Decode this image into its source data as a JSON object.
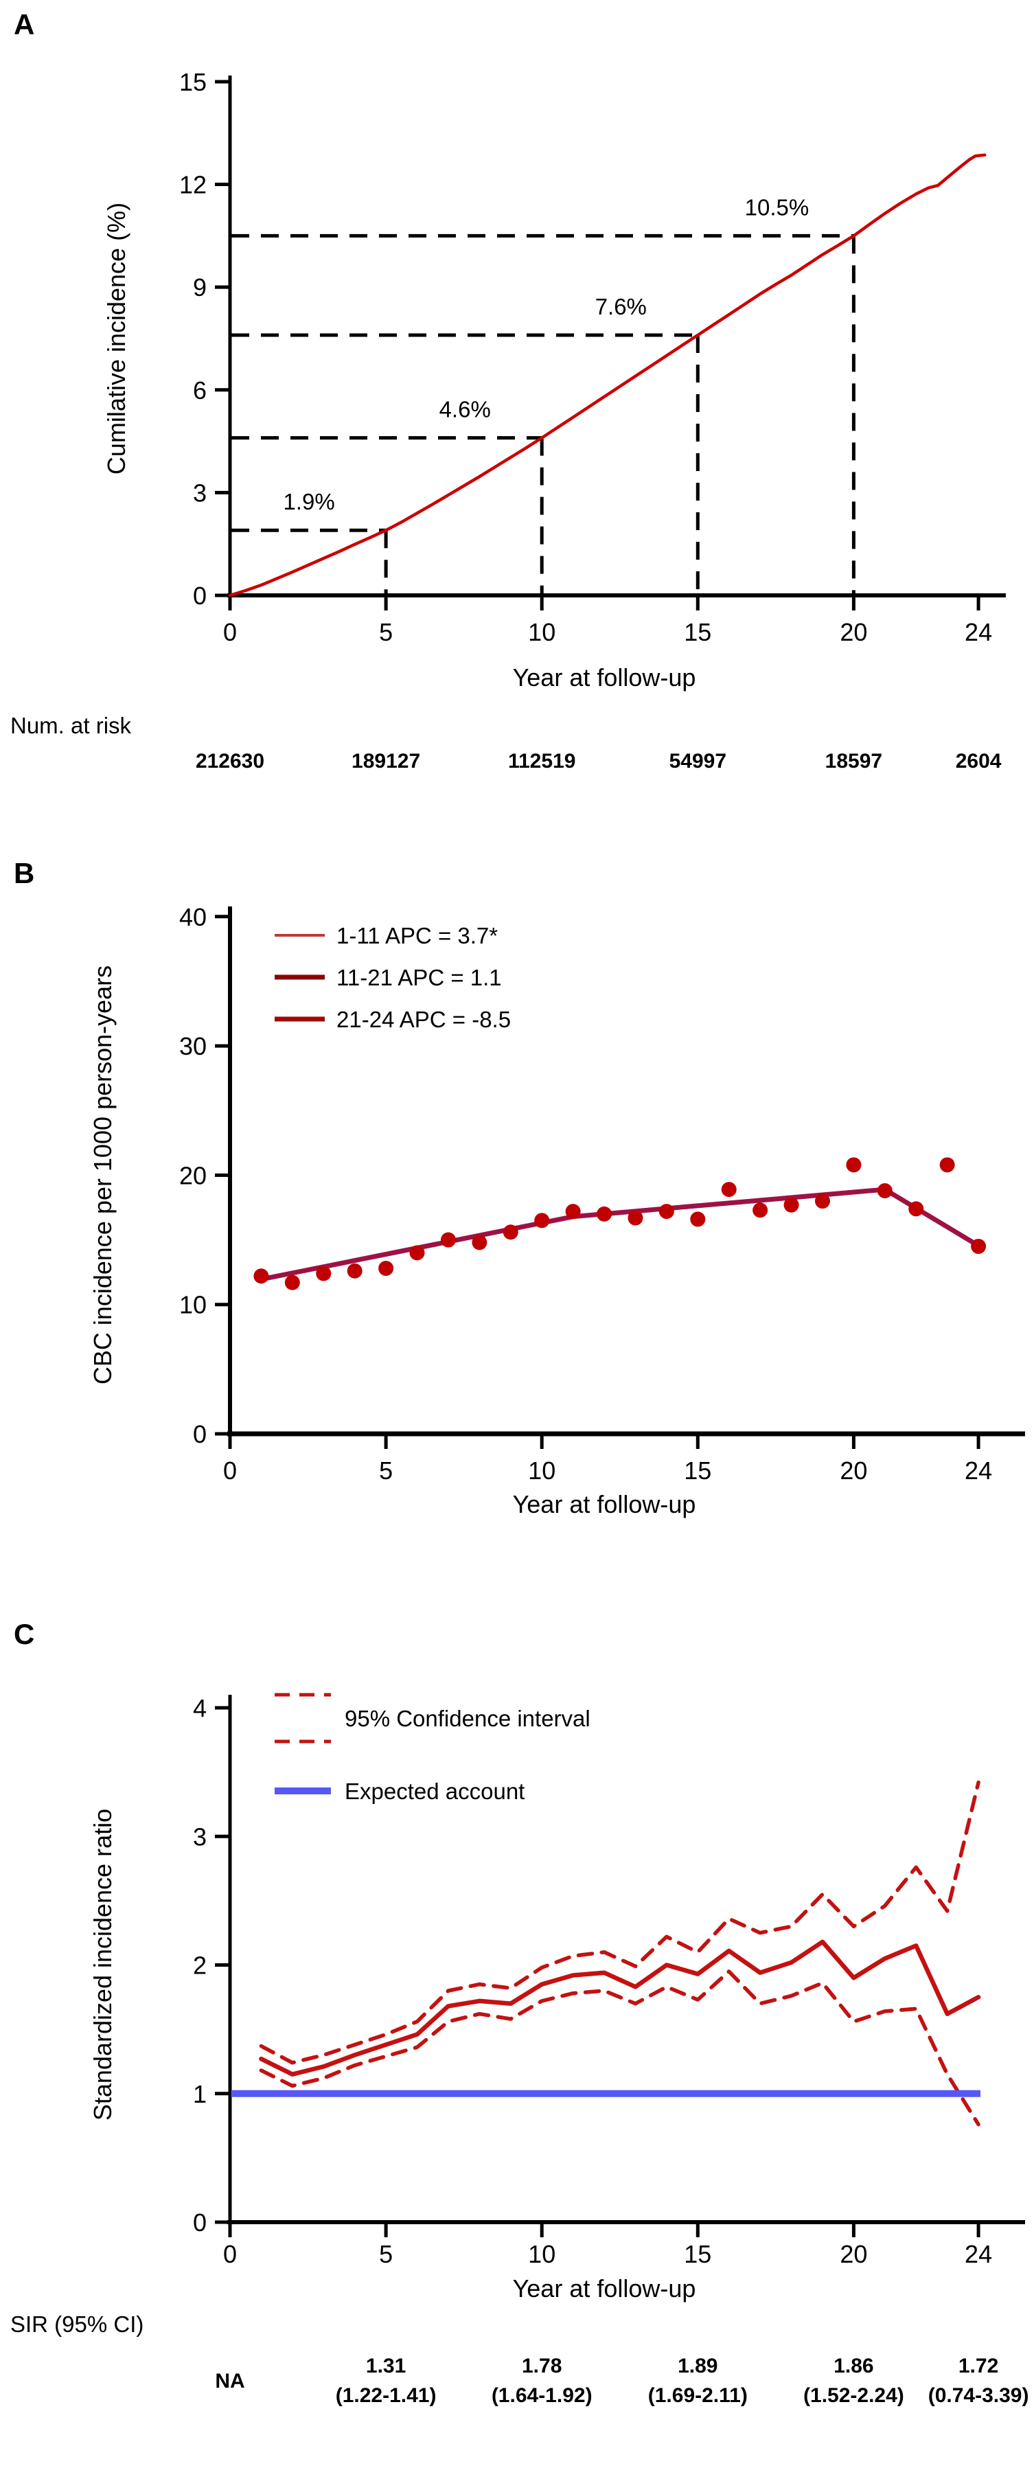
{
  "colors": {
    "axis": "#000000",
    "guide_dash": "#000000",
    "curve_red": "#cc0000",
    "b_dot": "#c00000",
    "b_line": "#9e1145",
    "b_seg1": "#bc3a3a",
    "b_seg2": "#8b0505",
    "b_seg3": "#a00808",
    "sir_red": "#c41111",
    "expected_blue": "#5757f7"
  },
  "panel_a": {
    "label": "A",
    "y_title": "Cumilative incidence (%)",
    "x_title": "Year at follow-up",
    "risk_label": "Num. at risk"
  },
  "panel_b": {
    "label": "B",
    "y_title": "CBC incidence per 1000 person-years",
    "x_title": "Year at follow-up"
  },
  "panel_c": {
    "label": "C",
    "y_title": "Standardized incidence ratio",
    "x_title": "Year at follow-up",
    "sir_label": "SIR (95% CI)"
  },
  "chart_data": [
    {
      "type": "line",
      "panel": "A",
      "xlabel": "Year at follow-up",
      "ylabel": "Cumilative incidence (%)",
      "xlim": [
        0,
        24.3
      ],
      "ylim": [
        0,
        15
      ],
      "x_ticks": [
        0,
        5,
        10,
        15,
        20,
        24
      ],
      "y_ticks": [
        0,
        3,
        6,
        9,
        12,
        15
      ],
      "grid": false,
      "annotations": [
        {
          "year": 5,
          "value": 1.9,
          "label": "1.9%"
        },
        {
          "year": 10,
          "value": 4.6,
          "label": "4.6%"
        },
        {
          "year": 15,
          "value": 7.6,
          "label": "7.6%"
        },
        {
          "year": 20,
          "value": 10.5,
          "label": "10.5%"
        }
      ],
      "curve": [
        [
          0,
          0
        ],
        [
          0.5,
          0.14
        ],
        [
          1,
          0.3
        ],
        [
          1.5,
          0.49
        ],
        [
          2,
          0.68
        ],
        [
          2.5,
          0.88
        ],
        [
          3,
          1.08
        ],
        [
          3.5,
          1.28
        ],
        [
          4,
          1.49
        ],
        [
          4.5,
          1.69
        ],
        [
          5,
          1.9
        ],
        [
          5.5,
          2.14
        ],
        [
          6,
          2.4
        ],
        [
          6.5,
          2.66
        ],
        [
          7,
          2.93
        ],
        [
          7.5,
          3.2
        ],
        [
          8,
          3.47
        ],
        [
          8.5,
          3.75
        ],
        [
          9,
          4.03
        ],
        [
          9.5,
          4.31
        ],
        [
          10,
          4.6
        ],
        [
          10.5,
          4.9
        ],
        [
          11,
          5.2
        ],
        [
          11.5,
          5.5
        ],
        [
          12,
          5.8
        ],
        [
          12.5,
          6.1
        ],
        [
          13,
          6.4
        ],
        [
          13.5,
          6.7
        ],
        [
          14,
          7.0
        ],
        [
          14.5,
          7.3
        ],
        [
          15,
          7.6
        ],
        [
          15.5,
          7.9
        ],
        [
          16,
          8.2
        ],
        [
          16.5,
          8.5
        ],
        [
          17,
          8.8
        ],
        [
          17.5,
          9.08
        ],
        [
          18,
          9.35
        ],
        [
          18.5,
          9.65
        ],
        [
          19,
          9.95
        ],
        [
          19.5,
          10.22
        ],
        [
          20,
          10.5
        ],
        [
          20.5,
          10.83
        ],
        [
          21,
          11.15
        ],
        [
          21.5,
          11.45
        ],
        [
          22,
          11.72
        ],
        [
          22.4,
          11.9
        ],
        [
          22.7,
          11.97
        ],
        [
          23,
          12.2
        ],
        [
          23.4,
          12.5
        ],
        [
          23.7,
          12.72
        ],
        [
          23.9,
          12.83
        ],
        [
          24.2,
          12.86
        ]
      ],
      "num_at_risk": {
        "label": "Num. at risk",
        "years": [
          0,
          5,
          10,
          15,
          20,
          24
        ],
        "values": [
          "212630",
          "189127",
          "112519",
          "54997",
          "18597",
          "2604"
        ]
      }
    },
    {
      "type": "scatter",
      "panel": "B",
      "xlabel": "Year at follow-up",
      "ylabel": "CBC incidence per 1000 person-years",
      "xlim": [
        0,
        25.5
      ],
      "ylim": [
        0,
        40
      ],
      "x_ticks": [
        0,
        5,
        10,
        15,
        20,
        24
      ],
      "y_ticks": [
        0,
        10,
        20,
        30,
        40
      ],
      "grid": false,
      "legend_position": "top-left-inside",
      "legend": [
        {
          "label": "1-11 APC = 3.7*",
          "color_key": "b_seg1",
          "width": 4
        },
        {
          "label": "11-21 APC = 1.1",
          "color_key": "b_seg2",
          "width": 7
        },
        {
          "label": "21-24 APC = -8.5",
          "color_key": "b_seg3",
          "width": 7
        }
      ],
      "points": {
        "x": [
          1,
          2,
          3,
          4,
          5,
          6,
          7,
          8,
          9,
          10,
          11,
          12,
          13,
          14,
          15,
          16,
          17,
          18,
          19,
          20,
          21,
          22,
          23,
          24
        ],
        "y": [
          12.2,
          11.7,
          12.4,
          12.6,
          12.8,
          14.0,
          15.0,
          14.8,
          15.6,
          16.5,
          17.2,
          17.0,
          16.7,
          17.2,
          16.6,
          18.9,
          17.3,
          17.7,
          18.0,
          20.8,
          18.8,
          17.4,
          20.8,
          14.5
        ]
      },
      "trend_joinpoints": [
        [
          1,
          11.95
        ],
        [
          11,
          16.8
        ],
        [
          21,
          18.9
        ],
        [
          24,
          14.55
        ]
      ]
    },
    {
      "type": "line",
      "panel": "C",
      "xlabel": "Year at follow-up",
      "ylabel": "Standardized incidence ratio",
      "xlim": [
        0,
        25.5
      ],
      "ylim": [
        0,
        4
      ],
      "x_ticks": [
        0,
        5,
        10,
        15,
        20,
        24
      ],
      "y_ticks": [
        0,
        1,
        2,
        3,
        4
      ],
      "grid": false,
      "legend": {
        "ci": "95% Confidence interval",
        "expected": "Expected account"
      },
      "x": [
        1,
        2,
        3,
        4,
        5,
        6,
        7,
        8,
        9,
        10,
        11,
        12,
        13,
        14,
        15,
        16,
        17,
        18,
        19,
        20,
        21,
        22,
        23,
        24
      ],
      "series": [
        {
          "name": "SIR",
          "style": "solid",
          "color_key": "sir_red",
          "values": [
            1.27,
            1.15,
            1.21,
            1.3,
            1.38,
            1.46,
            1.68,
            1.72,
            1.7,
            1.85,
            1.92,
            1.94,
            1.83,
            2.0,
            1.93,
            2.11,
            1.94,
            2.02,
            2.18,
            1.9,
            2.05,
            2.15,
            1.62,
            1.75
          ]
        },
        {
          "name": "95% CI upper",
          "style": "dashed",
          "color_key": "sir_red",
          "values": [
            1.37,
            1.24,
            1.3,
            1.38,
            1.46,
            1.56,
            1.8,
            1.85,
            1.82,
            1.98,
            2.07,
            2.1,
            1.99,
            2.22,
            2.1,
            2.36,
            2.25,
            2.3,
            2.55,
            2.3,
            2.46,
            2.76,
            2.42,
            3.42
          ]
        },
        {
          "name": "95% CI lower",
          "style": "dashed",
          "color_key": "sir_red",
          "values": [
            1.18,
            1.06,
            1.12,
            1.22,
            1.29,
            1.36,
            1.56,
            1.62,
            1.58,
            1.72,
            1.78,
            1.8,
            1.7,
            1.83,
            1.73,
            1.95,
            1.7,
            1.76,
            1.86,
            1.56,
            1.64,
            1.66,
            1.15,
            0.76
          ]
        },
        {
          "name": "Expected account",
          "style": "solid",
          "color_key": "expected_blue",
          "constant": 1.0
        }
      ],
      "sir_table": {
        "label": "SIR (95% CI)",
        "years": [
          0,
          5,
          10,
          15,
          20,
          24
        ],
        "values": [
          "NA",
          "1.31",
          "1.78",
          "1.89",
          "1.86",
          "1.72"
        ],
        "ci": [
          "",
          "(1.22-1.41)",
          "(1.64-1.92)",
          "(1.69-2.11)",
          "(1.52-2.24)",
          "(0.74-3.39)"
        ]
      }
    }
  ]
}
